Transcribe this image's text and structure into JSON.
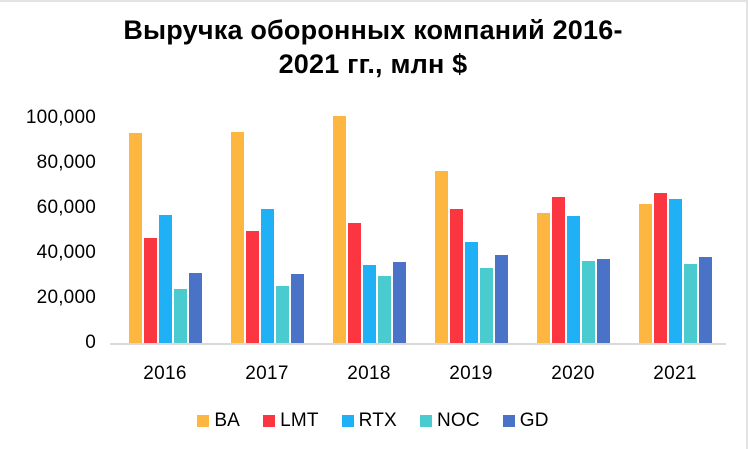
{
  "chart_data": {
    "type": "bar",
    "title": "Выручка оборонных компаний 2016-2021 гг., млн $",
    "title_lines": [
      "Выручка оборонных компаний 2016-",
      "2021 гг., млн $"
    ],
    "xlabel": "",
    "ylabel": "",
    "categories": [
      "2016",
      "2017",
      "2018",
      "2019",
      "2020",
      "2021"
    ],
    "series": [
      {
        "name": "BA",
        "color": "#FDB63F",
        "values": [
          93496,
          94005,
          101127,
          76559,
          58158,
          62286
        ]
      },
      {
        "name": "LMT",
        "color": "#FB3640",
        "values": [
          47248,
          49960,
          53762,
          59812,
          65398,
          67044
        ]
      },
      {
        "name": "RTX",
        "color": "#1FB0F5",
        "values": [
          57244,
          59837,
          34900,
          45349,
          56587,
          64388
        ]
      },
      {
        "name": "NOC",
        "color": "#4ACBD0",
        "values": [
          24508,
          25803,
          30095,
          33841,
          36799,
          35667
        ]
      },
      {
        "name": "GD",
        "color": "#4A72C6",
        "values": [
          31353,
          30973,
          36193,
          39350,
          37925,
          38469
        ]
      }
    ],
    "ylim": [
      0,
      100000
    ],
    "ytick_step": 20000,
    "yticks": [
      {
        "label": "100,000",
        "value": 100000
      },
      {
        "label": "80,000",
        "value": 80000
      },
      {
        "label": "60,000",
        "value": 60000
      },
      {
        "label": "40,000",
        "value": 40000
      },
      {
        "label": "20,000",
        "value": 20000
      },
      {
        "label": "0",
        "value": 0
      }
    ],
    "grid": false,
    "legend_position": "bottom",
    "axis_line_color": "#d9d9d9",
    "text_color": "#000000",
    "background_color": "#ffffff"
  }
}
